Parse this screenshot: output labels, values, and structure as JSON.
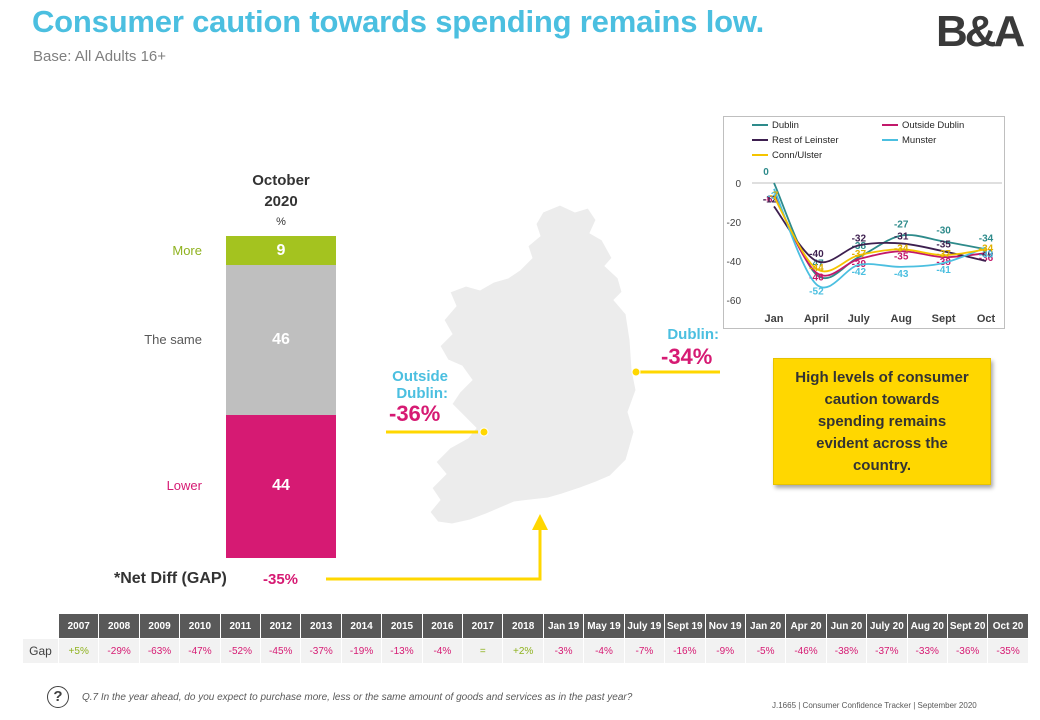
{
  "header": {
    "title": "Consumer caution towards spending remains low.",
    "subtitle": "Base: All Adults 16+",
    "logo": "B&A"
  },
  "stacked_bar": {
    "heading_line1": "October",
    "heading_line2": "2020",
    "unit": "%",
    "segments": [
      {
        "label": "More",
        "value": 9,
        "color": "#a4c31f"
      },
      {
        "label": "The same",
        "value": 46,
        "color": "#bfbfbf"
      },
      {
        "label": "Lower",
        "value": 44,
        "color": "#d61a73"
      }
    ]
  },
  "net_diff": {
    "label": "*Net Diff (GAP)",
    "value": "-35%"
  },
  "map": {
    "outside_label_1": "Outside",
    "outside_label_2": "Dublin:",
    "outside_value": "-36%",
    "dublin_label": "Dublin:",
    "dublin_value": "-34%"
  },
  "callout": {
    "text": "High levels of consumer caution towards spending remains evident across the country."
  },
  "chart_data": [
    {
      "type": "bar",
      "categories": [
        "October 2020"
      ],
      "series": [
        {
          "name": "More",
          "values": [
            9
          ]
        },
        {
          "name": "The same",
          "values": [
            46
          ]
        },
        {
          "name": "Lower",
          "values": [
            44
          ]
        }
      ],
      "ylabel": "%"
    },
    {
      "type": "line",
      "x": [
        "Jan",
        "April",
        "July",
        "Aug",
        "Sept",
        "Oct"
      ],
      "ylim": [
        -60,
        0
      ],
      "yticks": [
        0,
        -20,
        -40,
        -60
      ],
      "legend": "top",
      "series": [
        {
          "name": "Dublin",
          "color": "#2e8b8b",
          "values": [
            0,
            -47,
            -38,
            -27,
            -30,
            -34
          ]
        },
        {
          "name": "Outside Dublin",
          "color": "#c2186b",
          "values": [
            -6,
            -46,
            -39,
            -35,
            -38,
            -36
          ]
        },
        {
          "name": "Rest of Leinster",
          "color": "#3d1f4f",
          "values": [
            -12,
            -40,
            -32,
            -31,
            -35,
            -40
          ]
        },
        {
          "name": "Munster",
          "color": "#4bbfe0",
          "values": [
            -3,
            -52,
            -42,
            -43,
            -41,
            -33
          ]
        },
        {
          "name": "Conn/Ulster",
          "color": "#f5c400",
          "values": [
            -7,
            -44,
            -37,
            -34,
            -37,
            -34
          ]
        }
      ]
    },
    {
      "type": "table",
      "row_label": "Gap",
      "columns": [
        "2007",
        "2008",
        "2009",
        "2010",
        "2011",
        "2012",
        "2013",
        "2014",
        "2015",
        "2016",
        "2017",
        "2018",
        "Jan 19",
        "May 19",
        "July 19",
        "Sept 19",
        "Nov 19",
        "Jan 20",
        "Apr 20",
        "Jun 20",
        "July 20",
        "Aug 20",
        "Sept 20",
        "Oct 20"
      ],
      "values": [
        "+5%",
        "-29%",
        "-63%",
        "-47%",
        "-52%",
        "-45%",
        "-37%",
        "-19%",
        "-13%",
        "-4%",
        "=",
        "+2%",
        "-3%",
        "-4%",
        "-7%",
        "-16%",
        "-9%",
        "-5%",
        "-46%",
        "-38%",
        "-37%",
        "-33%",
        "-36%",
        "-35%"
      ]
    }
  ],
  "footer": {
    "question": "Q.7 In the year ahead, do you expect to purchase more, less or the same amount of goods and services as in the past year?",
    "reference": "J.1665 | Consumer Confidence Tracker | September 2020",
    "help_glyph": "?"
  }
}
